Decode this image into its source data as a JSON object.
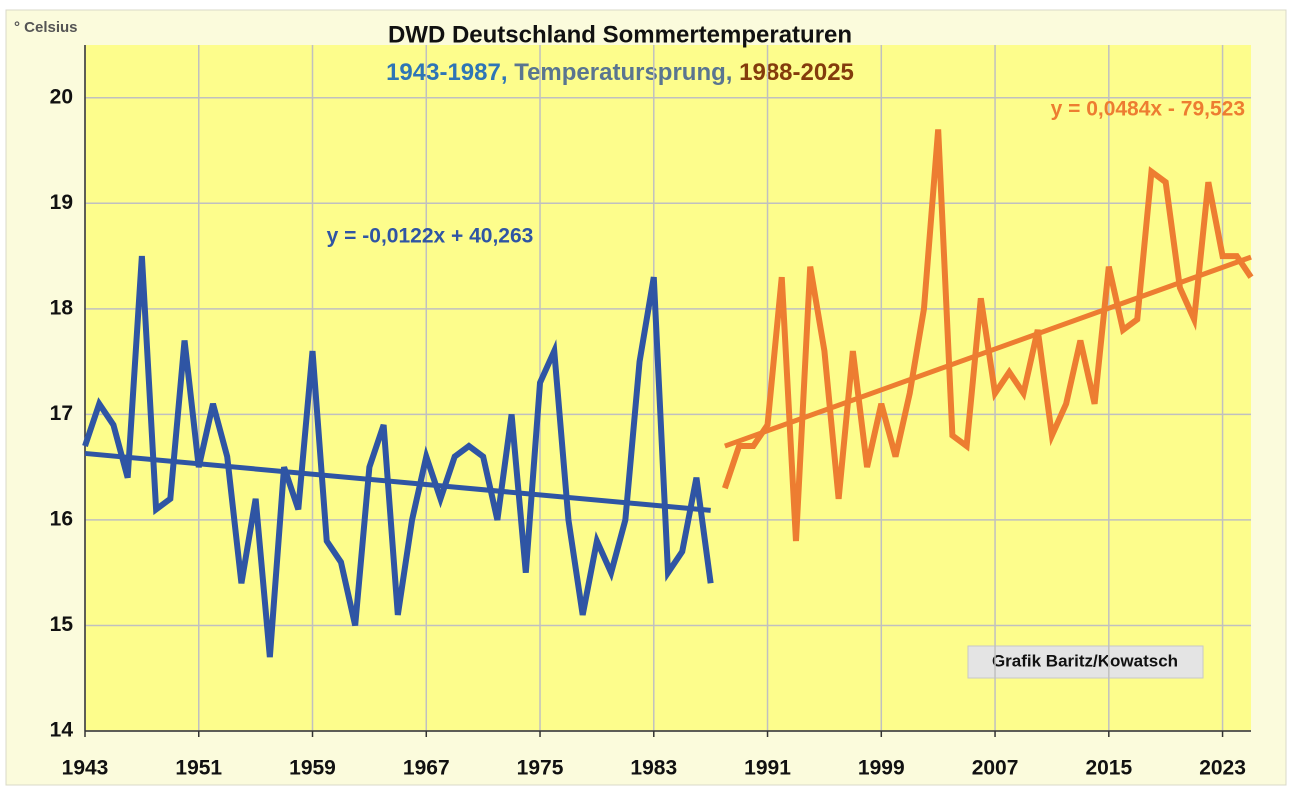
{
  "chart_data": {
    "type": "line",
    "title": "DWD Deutschland Sommertemperaturen",
    "subtitle": [
      {
        "text": "1943-1987,",
        "color": "#2e75b6"
      },
      {
        "text": " Temperatursprung,",
        "color": "#5a7590"
      },
      {
        "text": " 1988-2025",
        "color": "#843c0c"
      }
    ],
    "y_label": "° Celsius",
    "credit": "Grafik Baritz/Kowatsch",
    "xlim": [
      1943,
      2025
    ],
    "xticks": [
      1943,
      1951,
      1959,
      1967,
      1975,
      1983,
      1991,
      1999,
      2007,
      2015,
      2023
    ],
    "ylim": [
      14,
      20.5
    ],
    "yticks": [
      14,
      15,
      16,
      17,
      18,
      19,
      20
    ],
    "grid": true,
    "series": [
      {
        "color": "#2f55a4",
        "x": [
          1943,
          1944,
          1945,
          1946,
          1947,
          1948,
          1949,
          1950,
          1951,
          1952,
          1953,
          1954,
          1955,
          1956,
          1957,
          1958,
          1959,
          1960,
          1961,
          1962,
          1963,
          1964,
          1965,
          1966,
          1967,
          1968,
          1969,
          1970,
          1971,
          1972,
          1973,
          1974,
          1975,
          1976,
          1977,
          1978,
          1979,
          1980,
          1981,
          1982,
          1983,
          1984,
          1985,
          1986,
          1987
        ],
        "values": [
          16.7,
          17.1,
          16.9,
          16.4,
          18.5,
          16.1,
          16.2,
          17.7,
          16.5,
          17.1,
          16.6,
          15.4,
          16.2,
          14.7,
          16.5,
          16.1,
          17.6,
          15.8,
          15.6,
          15.0,
          16.5,
          16.9,
          15.1,
          16.0,
          16.6,
          16.2,
          16.6,
          16.7,
          16.6,
          16.0,
          17.0,
          15.5,
          17.3,
          17.6,
          16.0,
          15.1,
          15.8,
          15.5,
          16.0,
          17.5,
          18.3,
          15.5,
          15.7,
          16.4,
          15.4
        ]
      },
      {
        "color": "#ed7d31",
        "x": [
          1988,
          1989,
          1990,
          1991,
          1992,
          1993,
          1994,
          1995,
          1996,
          1997,
          1998,
          1999,
          2000,
          2001,
          2002,
          2003,
          2004,
          2005,
          2006,
          2007,
          2008,
          2009,
          2010,
          2011,
          2012,
          2013,
          2014,
          2015,
          2016,
          2017,
          2018,
          2019,
          2020,
          2021,
          2022,
          2023,
          2024,
          2025
        ],
        "values": [
          16.3,
          16.7,
          16.7,
          16.9,
          18.3,
          15.8,
          18.4,
          17.6,
          16.2,
          17.6,
          16.5,
          17.1,
          16.6,
          17.2,
          18.0,
          19.7,
          16.8,
          16.7,
          18.1,
          17.2,
          17.4,
          17.2,
          17.8,
          16.8,
          17.1,
          17.7,
          17.1,
          18.4,
          17.8,
          17.9,
          19.3,
          19.2,
          18.2,
          17.9,
          19.2,
          18.5,
          18.5,
          18.3
        ]
      }
    ],
    "trendlines": [
      {
        "label": "y = -0,0122x + 40,263",
        "color": "#2f55a4",
        "x": [
          1943,
          1987
        ],
        "values": [
          16.63,
          16.09
        ]
      },
      {
        "label": "y = 0,0484x - 79,523",
        "color": "#ed7d31",
        "x": [
          1988,
          2025
        ],
        "values": [
          16.7,
          18.49
        ]
      }
    ]
  }
}
